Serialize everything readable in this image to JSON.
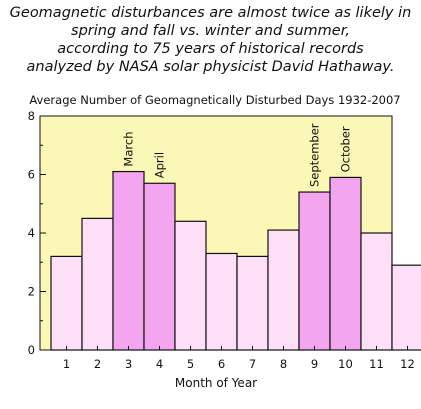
{
  "caption": {
    "lines": [
      "Geomagnetic disturbances are almost twice as likely in",
      "spring and fall vs. winter and summer,",
      "according to 75 years of historical records",
      "analyzed by NASA solar physicist  David Hathaway."
    ]
  },
  "colors": {
    "plot_background": "#fbf7b6",
    "bar_fill": "#fde0f8",
    "bar_highlight_fill": "#f3a6ef",
    "bar_stroke": "#111111"
  },
  "chart_data": {
    "type": "bar",
    "title": "Average Number of Geomagnetically Disturbed Days 1932-2007",
    "xlabel": "Month of Year",
    "ylabel": "",
    "categories": [
      "1",
      "2",
      "3",
      "4",
      "5",
      "6",
      "7",
      "8",
      "9",
      "10",
      "11",
      "12"
    ],
    "values": [
      3.2,
      4.5,
      6.1,
      5.7,
      4.4,
      3.3,
      3.2,
      4.1,
      5.4,
      5.9,
      4.0,
      2.9
    ],
    "highlighted": [
      false,
      false,
      true,
      true,
      false,
      false,
      false,
      false,
      true,
      true,
      false,
      false
    ],
    "bar_labels": [
      "",
      "",
      "March",
      "April",
      "",
      "",
      "",
      "",
      "September",
      "October",
      "",
      ""
    ],
    "ylim": [
      0,
      8
    ],
    "yticks": [
      "0",
      "2",
      "4",
      "6",
      "8"
    ],
    "grid": false,
    "legend": "none"
  }
}
